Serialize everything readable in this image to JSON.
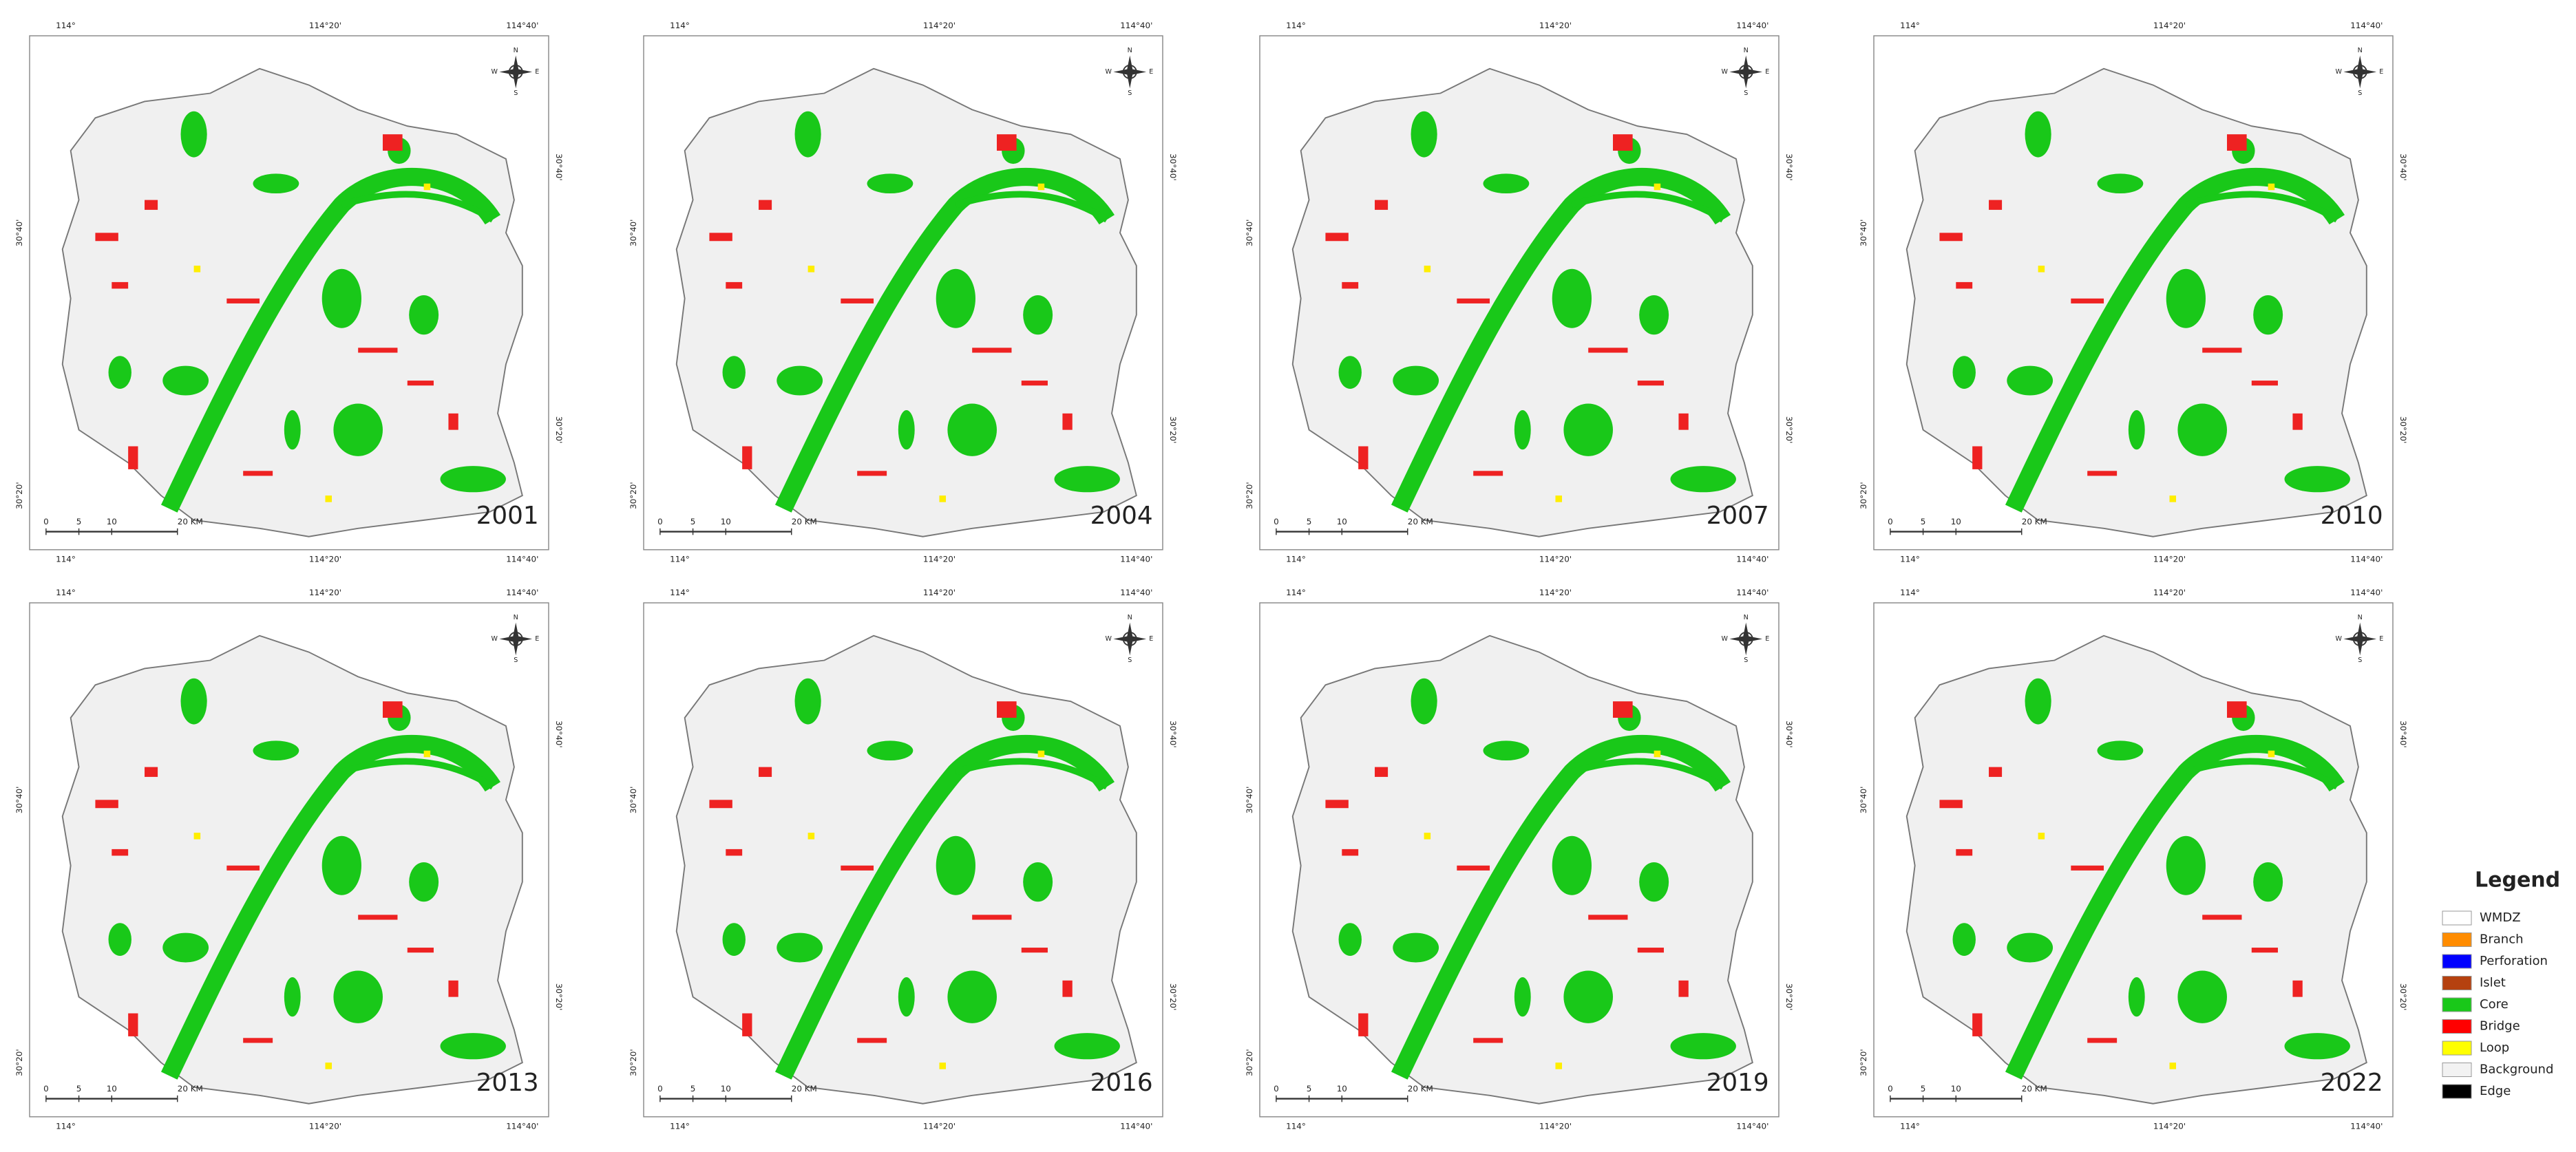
{
  "panels": [
    {
      "year": "2001"
    },
    {
      "year": "2004"
    },
    {
      "year": "2007"
    },
    {
      "year": "2010"
    },
    {
      "year": "2013"
    },
    {
      "year": "2016"
    },
    {
      "year": "2019"
    },
    {
      "year": "2022"
    }
  ],
  "graticule": {
    "longitude": [
      "114°",
      "114°20'",
      "114°40'"
    ],
    "latitude": [
      "30°40'",
      "30°20'"
    ]
  },
  "scale_bar": [
    "0",
    "5",
    "10",
    "20 KM"
  ],
  "compass": [
    "N",
    "E",
    "S",
    "W"
  ],
  "legend": {
    "title": "Legend",
    "items": [
      {
        "label": "WMDZ",
        "color": "#ffffff"
      },
      {
        "label": "Branch",
        "color": "#ff8c00"
      },
      {
        "label": "Perforation",
        "color": "#0000ff"
      },
      {
        "label": "Islet",
        "color": "#b5410f"
      },
      {
        "label": "Core",
        "color": "#19c819"
      },
      {
        "label": "Bridge",
        "color": "#ff0000"
      },
      {
        "label": "Loop",
        "color": "#ffff00"
      },
      {
        "label": "Background",
        "color": "#f2f2f2"
      },
      {
        "label": "Edge",
        "color": "#000000"
      }
    ]
  }
}
